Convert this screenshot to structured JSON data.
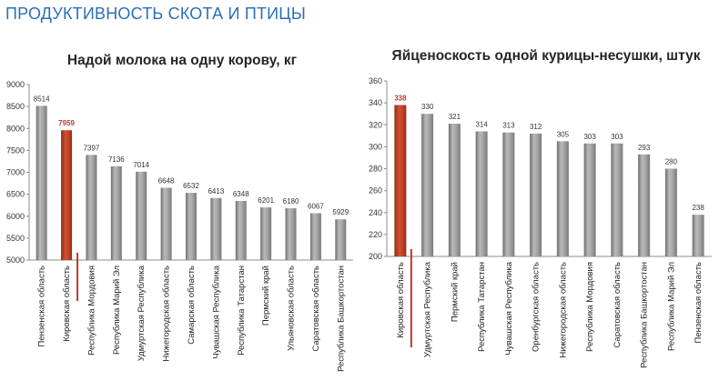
{
  "page": {
    "title": "ПРОДУКТИВНОСТЬ СКОТА И ПТИЦЫ"
  },
  "colors": {
    "highlight": "#c0392b",
    "bar": "#9b9b9b",
    "title": "#2b6fb6"
  },
  "chart_data": [
    {
      "type": "bar",
      "title": "Надой молока на одну корову, кг",
      "xlabel": "",
      "ylabel": "",
      "ylim": [
        5000,
        9000
      ],
      "yticks": [
        5000,
        5500,
        6000,
        6500,
        7000,
        7500,
        8000,
        8500,
        9000
      ],
      "grid": false,
      "legend": "none",
      "highlight_category": "Кировская область",
      "categories": [
        "Пензенская область",
        "Кировская область",
        "Республика Мордовия",
        "Республика Марий Эл",
        "Удмуртская Республика",
        "Нижегородская область",
        "Самарская область",
        "Чувашская Республика",
        "Республика Татарстан",
        "Пермский край",
        "Ульяновская область",
        "Саратовская область",
        "Республика Башкортостан"
      ],
      "values": [
        8514,
        7959,
        7397,
        7136,
        7014,
        6648,
        6532,
        6413,
        6348,
        6201,
        6180,
        6067,
        5929
      ]
    },
    {
      "type": "bar",
      "title": "Яйценоскость одной курицы-несушки, штук",
      "xlabel": "",
      "ylabel": "",
      "ylim": [
        200,
        360
      ],
      "yticks": [
        200,
        220,
        240,
        260,
        280,
        300,
        320,
        340,
        360
      ],
      "grid": false,
      "legend": "none",
      "highlight_category": "Кировская область",
      "categories": [
        "Кировская область",
        "Удмуртская Республика",
        "Пермский край",
        "Республика Татарстан",
        "Чувашская Республика",
        "Оренбургская область",
        "Нижегородская область",
        "Республика Мордовия",
        "Саратовская область",
        "Республика Башкортостан",
        "Республика Марий Эл",
        "Пензенская область"
      ],
      "values": [
        338,
        330,
        321,
        314,
        313,
        312,
        305,
        303,
        303,
        293,
        280,
        238
      ]
    }
  ]
}
